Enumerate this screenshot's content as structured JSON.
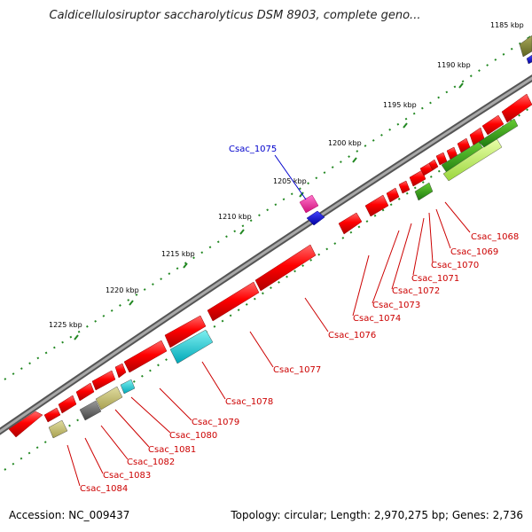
{
  "title": "Caldicellulosiruptor saccharolyticus DSM 8903, complete geno...",
  "footer": {
    "accession": "Accession: NC_009437",
    "summary": "Topology: circular; Length: 2,970,275 bp; Genes: 2,736"
  },
  "scale_ticks": [
    "1185 kbp",
    "1190 kbp",
    "1195 kbp",
    "1200 kbp",
    "1205 kbp",
    "1210 kbp",
    "1215 kbp",
    "1220 kbp",
    "1225 kbp"
  ],
  "gene_labels": [
    "Csac_1068",
    "Csac_1069",
    "Csac_1070",
    "Csac_1071",
    "Csac_1072",
    "Csac_1073",
    "Csac_1074",
    "Csac_1076",
    "Csac_1077",
    "Csac_1078",
    "Csac_1079",
    "Csac_1080",
    "Csac_1081",
    "Csac_1082",
    "Csac_1083",
    "Csac_1084"
  ],
  "highlight_label": "Csac_1075",
  "colors": {
    "cds": "#ff0000",
    "highlight_label": "#0000cc",
    "label": "#cc0000",
    "backbone": "#888888",
    "ticks": "#228822"
  }
}
